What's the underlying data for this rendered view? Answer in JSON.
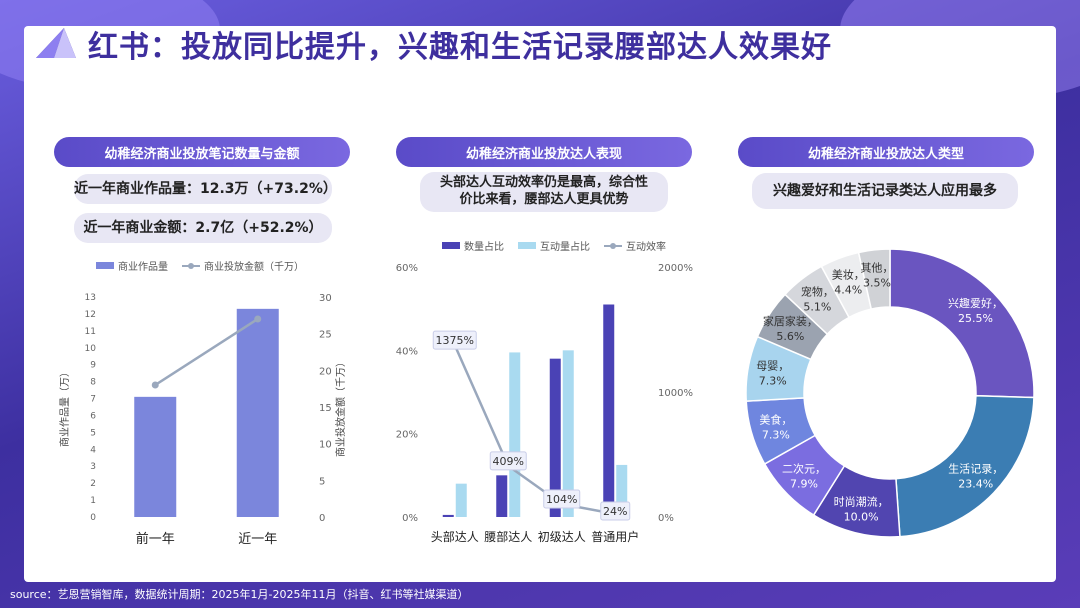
{
  "title": "红书：投放同比提升，兴趣和生活记录腰部达人效果好",
  "source": "source：艺恩营销智库，数据统计周期：2025年1月-2025年11月（抖音、红书等社媒渠道）",
  "panel1": {
    "header": "幼稚经济商业投放笔记数量与金额",
    "stat1": "近一年商业作品量：12.3万（+73.2%）",
    "stat2": "近一年商业金额：2.7亿（+52.2%）",
    "legend_bar": "商业作品量",
    "legend_line": "商业投放金额（千万）"
  },
  "panel2": {
    "header": "幼稚经济商业投放达人表现",
    "sub_line1": "头部达人互动效率仍是最高，综合性",
    "sub_line2": "价比来看，腰部达人更具优势",
    "legend": [
      "数量占比",
      "互动量占比",
      "互动效率"
    ]
  },
  "panel3": {
    "header": "幼稚经济商业投放达人类型",
    "sub": "兴趣爱好和生活记录类达人应用最多"
  },
  "colors": {
    "accent": "#5a4bc8",
    "bar1": "#7b86dc",
    "bar2": "#4a42b5",
    "bar3": "#a9daf0",
    "line": "#9aa8bd"
  },
  "chart_data": [
    {
      "type": "bar",
      "categories": [
        "前一年",
        "近一年"
      ],
      "series": [
        {
          "name": "商业作品量",
          "values": [
            7.1,
            12.3
          ]
        },
        {
          "name": "商业投放金额（千万）",
          "type": "line",
          "axis": "right",
          "values": [
            18,
            27
          ]
        }
      ],
      "ylabel": "商业作品量（万）",
      "y2label": "商业投放金额（千万）",
      "ylim": [
        0,
        13
      ],
      "y2lim": [
        0,
        30
      ],
      "yticks": [
        0,
        1,
        2,
        3,
        4,
        5,
        6,
        7,
        8,
        9,
        10,
        11,
        12,
        13
      ],
      "y2ticks": [
        0,
        5,
        10,
        15,
        20,
        25,
        30
      ]
    },
    {
      "type": "bar",
      "categories": [
        "头部达人",
        "腰部达人",
        "初级达人",
        "普通用户"
      ],
      "series": [
        {
          "name": "数量占比",
          "values": [
            0.5,
            10,
            38,
            51
          ]
        },
        {
          "name": "互动量占比",
          "values": [
            8,
            39.5,
            40,
            12.5
          ]
        },
        {
          "name": "互动效率",
          "type": "line",
          "axis": "right",
          "values": [
            1375,
            409,
            104,
            24
          ],
          "labels": [
            "1375%",
            "409%",
            "104%",
            "24%"
          ]
        }
      ],
      "ylim": [
        0,
        60
      ],
      "y2lim": [
        0,
        2000
      ],
      "yticks": [
        "0%",
        "20%",
        "40%",
        "60%"
      ],
      "y2ticks": [
        "0%",
        "1000%",
        "2000%"
      ]
    },
    {
      "type": "pie",
      "labels": [
        "兴趣爱好",
        "生活记录",
        "时尚潮流",
        "二次元",
        "美食",
        "母婴",
        "家居家装",
        "宠物",
        "美妆",
        "其他"
      ],
      "values": [
        25.5,
        23.4,
        10.0,
        7.9,
        7.3,
        7.3,
        5.6,
        5.1,
        4.4,
        3.5
      ],
      "value_labels": [
        "25.5%",
        "23.4%",
        "10.0%",
        "7.9%",
        "7.3%",
        "7.3%",
        "5.6%",
        "5.1%",
        "4.4%",
        "3.5%"
      ],
      "colors": [
        "#6a55c0",
        "#3b7db3",
        "#5145b0",
        "#7b6de0",
        "#6f86df",
        "#a8d4ee",
        "#9ba3b0",
        "#d5d7dc",
        "#ecedef",
        "#d0d2d6"
      ],
      "label_colors": [
        "#ffffff",
        "#ffffff",
        "#ffffff",
        "#ffffff",
        "#ffffff",
        "#333333",
        "#333333",
        "#333333",
        "#333333",
        "#333333"
      ]
    }
  ]
}
